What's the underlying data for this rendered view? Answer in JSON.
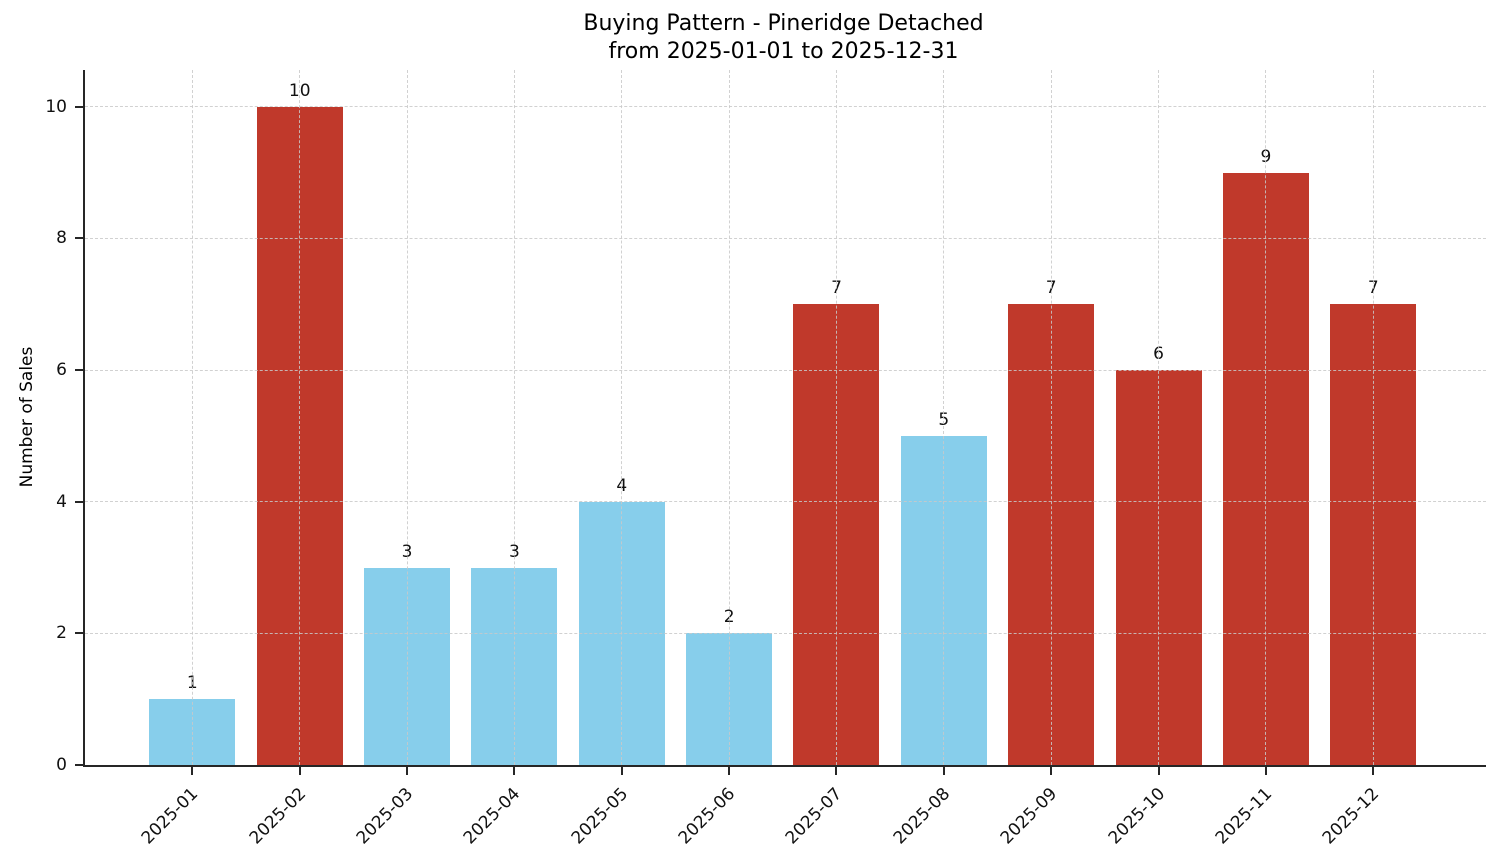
{
  "title": {
    "line1": "Buying Pattern - Pineridge Detached",
    "line2": "from 2025-01-01 to 2025-12-31"
  },
  "chart_data": {
    "type": "bar",
    "title": "Buying Pattern - Pineridge Detached\nfrom 2025-01-01 to 2025-12-31",
    "categories": [
      "2025-01",
      "2025-02",
      "2025-03",
      "2025-04",
      "2025-05",
      "2025-06",
      "2025-07",
      "2025-08",
      "2025-09",
      "2025-10",
      "2025-11",
      "2025-12"
    ],
    "values": [
      1,
      10,
      3,
      3,
      4,
      2,
      7,
      5,
      7,
      6,
      9,
      7
    ],
    "bar_colors": [
      "#87CEEB",
      "#C0392B",
      "#87CEEB",
      "#87CEEB",
      "#87CEEB",
      "#87CEEB",
      "#C0392B",
      "#87CEEB",
      "#C0392B",
      "#C0392B",
      "#C0392B",
      "#C0392B"
    ],
    "colors": {
      "low_color": "#87CEEB",
      "high_color": "#C0392B"
    },
    "xlabel": "",
    "ylabel": "Number of Sales",
    "ylim": [
      0,
      10.56
    ],
    "yticks": [
      0,
      2,
      4,
      6,
      8,
      10
    ],
    "grid": true,
    "grid_style": "dashed",
    "legend": null,
    "value_labels_shown": true,
    "xtick_rotation": 45
  }
}
